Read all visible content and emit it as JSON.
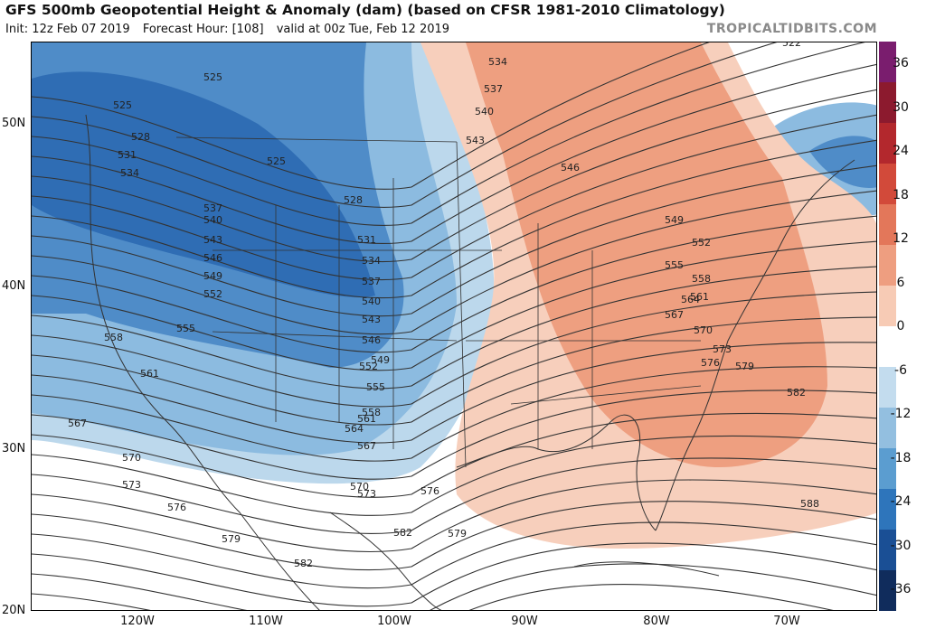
{
  "header": {
    "title": "GFS 500mb Geopotential Height & Anomaly (dam) (based on CFSR 1981-2010 Climatology)",
    "init": "Init: 12z Feb 07 2019",
    "forecast_hour": "Forecast Hour: [108]",
    "valid": "valid at 00z Tue, Feb 12 2019",
    "brand": "TROPICALTIDBITS.COM"
  },
  "map": {
    "lat_labels": [
      "50N",
      "40N",
      "30N",
      "20N"
    ],
    "lon_labels": [
      "120W",
      "110W",
      "100W",
      "90W",
      "80W",
      "70W"
    ],
    "contour_labels": [
      "522",
      "525",
      "525",
      "525",
      "528",
      "531",
      "534",
      "537",
      "540",
      "543",
      "546",
      "549",
      "552",
      "555",
      "558",
      "561",
      "567",
      "570",
      "573",
      "576",
      "579",
      "582",
      "528",
      "531",
      "534",
      "537",
      "540",
      "543",
      "546",
      "549",
      "552",
      "555",
      "558",
      "561",
      "564",
      "567",
      "570",
      "573",
      "576",
      "579",
      "582",
      "534",
      "537",
      "540",
      "543",
      "546",
      "549",
      "552",
      "555",
      "558",
      "561",
      "564",
      "567",
      "570",
      "573",
      "576",
      "579",
      "582",
      "588"
    ],
    "colors": {
      "neg_strong": "#1f5fa8",
      "neg_mid": "#4f8fc8",
      "neg_light": "#a9cde6",
      "pos_light": "#f7cdb8",
      "pos_mid": "#ec9f80",
      "land_line": "#333333",
      "contour_line": "#333333"
    }
  },
  "colorbar": {
    "ticks": [
      "36",
      "30",
      "24",
      "18",
      "12",
      "6",
      "0",
      "-6",
      "-12",
      "-18",
      "-24",
      "-30",
      "-36"
    ],
    "colors": [
      "#7a1d6e",
      "#8c1a2e",
      "#b3282d",
      "#d24a3a",
      "#e3775a",
      "#ee9e80",
      "#f7cbb5",
      "#ffffff",
      "#c3dcee",
      "#93bfe0",
      "#5b9dd0",
      "#2e75bb",
      "#1a4f95",
      "#102c5c"
    ]
  }
}
